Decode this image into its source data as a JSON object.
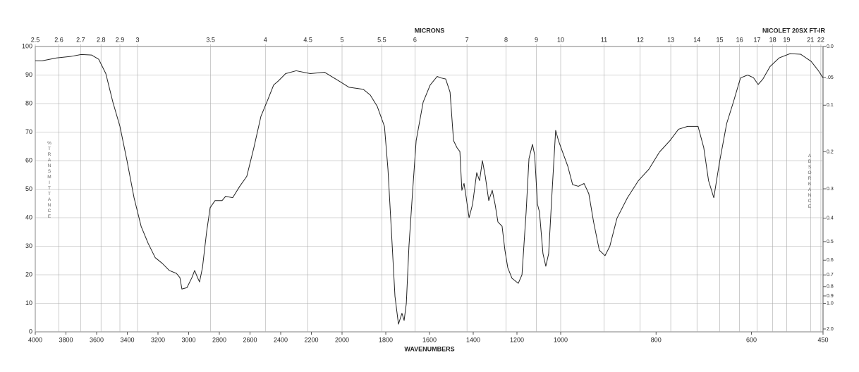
{
  "chart_data": {
    "type": "line",
    "title": "NICOLET 20SX FT-IR",
    "xlabel": "WAVENUMBERS",
    "x2label": "MICRONS",
    "ylabel": "%TRANSMITTANCE",
    "y2label": "ABSORBANCE",
    "xlim": [
      4000,
      450
    ],
    "x_scale_breaks": [
      2000,
      1000
    ],
    "xticks": [
      4000,
      3800,
      3600,
      3400,
      3200,
      3000,
      2800,
      2600,
      2400,
      2200,
      2000,
      1800,
      1600,
      1400,
      1200,
      1000,
      800,
      600,
      450
    ],
    "x2ticks": [
      2.5,
      2.6,
      2.7,
      2.8,
      2.9,
      3,
      3.5,
      4,
      4.5,
      5,
      5.5,
      6,
      7,
      8,
      9,
      10,
      11,
      12,
      13,
      14,
      15,
      16,
      17,
      18,
      19,
      21,
      22
    ],
    "ylim": [
      0,
      100
    ],
    "yticks": [
      0,
      10,
      20,
      30,
      40,
      50,
      60,
      70,
      80,
      90,
      100
    ],
    "y2ticks": [
      {
        "value": 0,
        "label": "0.0"
      },
      {
        "value": 0.05,
        "label": ".05"
      },
      0.1,
      0.2,
      0.3,
      0.4,
      0.5,
      0.6,
      0.7,
      0.8,
      0.9,
      {
        "value": 1,
        "label": "1.0"
      },
      {
        "value": 2,
        "label": "2.0"
      }
    ],
    "grid": true,
    "series": [
      {
        "name": "spectrum",
        "color": "#222222",
        "x": [
          4000,
          3954,
          3862,
          3770,
          3701,
          3632,
          3586,
          3540,
          3494,
          3448,
          3402,
          3356,
          3310,
          3264,
          3218,
          3172,
          3126,
          3080,
          3057,
          3044,
          3011,
          2979,
          2961,
          2942,
          2929,
          2910,
          2883,
          2860,
          2828,
          2782,
          2759,
          2713,
          2667,
          2621,
          2575,
          2529,
          2483,
          2446,
          2414,
          2368,
          2299,
          2207,
          2115,
          2023,
          1968,
          1903,
          1871,
          1839,
          1806,
          1790,
          1774,
          1758,
          1742,
          1726,
          1716,
          1706,
          1694,
          1677,
          1661,
          1629,
          1597,
          1565,
          1548,
          1526,
          1506,
          1490,
          1474,
          1461,
          1452,
          1442,
          1432,
          1419,
          1403,
          1384,
          1371,
          1358,
          1345,
          1329,
          1313,
          1300,
          1287,
          1268,
          1255,
          1242,
          1223,
          1194,
          1177,
          1158,
          1145,
          1129,
          1119,
          1106,
          1097,
          1081,
          1068,
          1055,
          1039,
          1023,
          1010,
          996,
          985,
          975,
          963,
          951,
          941,
          931,
          919,
          907,
          897,
          882,
          860,
          837,
          815,
          793,
          771,
          753,
          734,
          712,
          700,
          690,
          679,
          667,
          652,
          638,
          623,
          608,
          596,
          586,
          576,
          561,
          542,
          519,
          497,
          475,
          460,
          450
        ],
        "values": [
          95,
          95,
          96,
          96.5,
          97.2,
          97,
          95.5,
          90.5,
          80.5,
          72,
          60,
          47,
          37,
          31,
          26,
          24,
          21.5,
          20.5,
          19,
          15,
          15.5,
          19,
          21.5,
          19,
          17.5,
          22.5,
          35,
          43.5,
          46,
          46,
          47.5,
          47,
          51,
          54.5,
          64.5,
          75.5,
          81.5,
          86.5,
          88,
          90.5,
          91.5,
          90.5,
          91,
          88,
          85.7,
          85,
          83,
          79,
          72,
          57,
          35,
          12.5,
          2.7,
          6.5,
          4,
          10,
          30,
          49.5,
          67,
          80.5,
          86.5,
          89.5,
          89,
          88.6,
          84,
          67,
          64.5,
          63.2,
          49.6,
          52,
          47,
          40,
          44.7,
          55.8,
          53,
          60,
          54.6,
          46,
          49.6,
          44.7,
          38.5,
          37,
          28.6,
          22.5,
          18.8,
          17,
          20,
          42,
          60.7,
          65.7,
          62,
          44.7,
          42,
          27.4,
          23,
          27.4,
          49.6,
          70.6,
          67,
          63,
          58,
          51.6,
          51,
          52,
          48.4,
          38.5,
          28.6,
          26.7,
          30,
          39.8,
          47,
          53,
          57,
          63,
          67,
          71,
          72,
          72,
          64.5,
          53,
          47,
          59.5,
          73,
          80.5,
          89,
          90,
          89.1,
          86.7,
          88.6,
          93,
          96,
          97.5,
          97.3,
          94.8,
          91.6,
          89
        ]
      }
    ]
  }
}
